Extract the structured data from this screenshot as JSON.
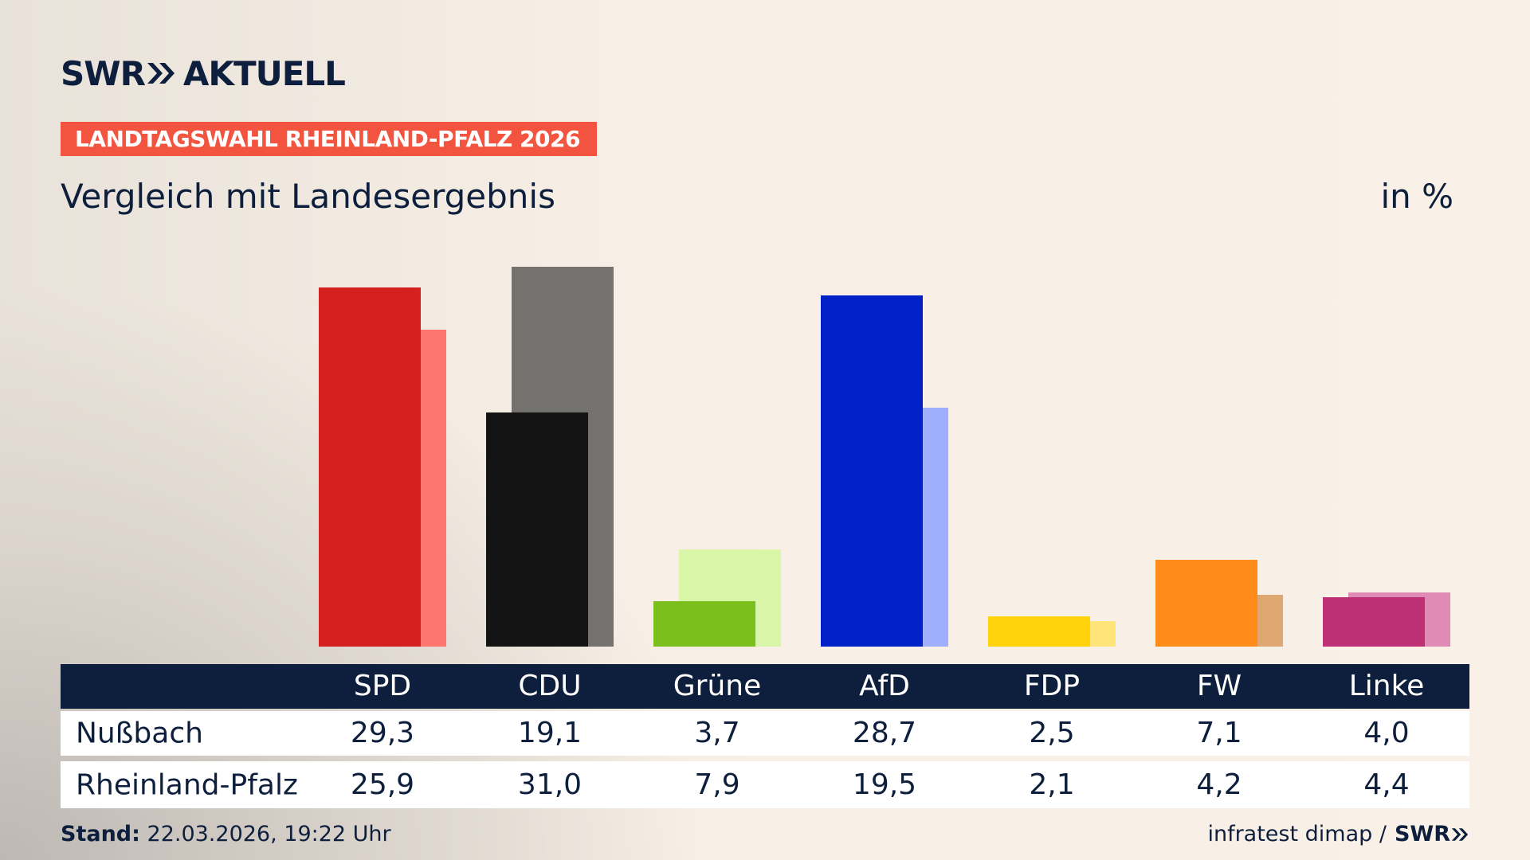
{
  "header": {
    "logo_left": "SWR",
    "logo_right": "AKTUELL"
  },
  "chart_data": {
    "type": "bar",
    "kicker": "LANDTAGSWAHL RHEINLAND-PFALZ 2026",
    "title": "Vergleich mit Landesergebnis",
    "unit": "in %",
    "categories": [
      "SPD",
      "CDU",
      "Grüne",
      "AfD",
      "FDP",
      "FW",
      "Linke"
    ],
    "series": [
      {
        "name": "Nußbach",
        "values": [
          29.3,
          19.1,
          3.7,
          28.7,
          2.5,
          7.1,
          4.0
        ],
        "value_labels": [
          "29,3",
          "19,1",
          "3,7",
          "28,7",
          "2,5",
          "7,1",
          "4,0"
        ],
        "colors": [
          "#d61f1f",
          "#141414",
          "#7abf1c",
          "#0021c8",
          "#ffd20a",
          "#ff8c1a",
          "#be3075"
        ]
      },
      {
        "name": "Rheinland-Pfalz",
        "values": [
          25.9,
          31.0,
          7.9,
          19.5,
          2.1,
          4.2,
          4.4
        ],
        "value_labels": [
          "25,9",
          "31,0",
          "7,9",
          "19,5",
          "2,1",
          "4,2",
          "4,4"
        ],
        "colors": [
          "#ff7670",
          "#74726f",
          "#d8f5a8",
          "#a0aeff",
          "#ffe47a",
          "#dfa872",
          "#e08ab6"
        ]
      }
    ]
  },
  "footer": {
    "stand_label": "Stand:",
    "stand_value": "22.03.2026, 19:22 Uhr",
    "source": "infratest dimap /",
    "logo": "SWR"
  }
}
